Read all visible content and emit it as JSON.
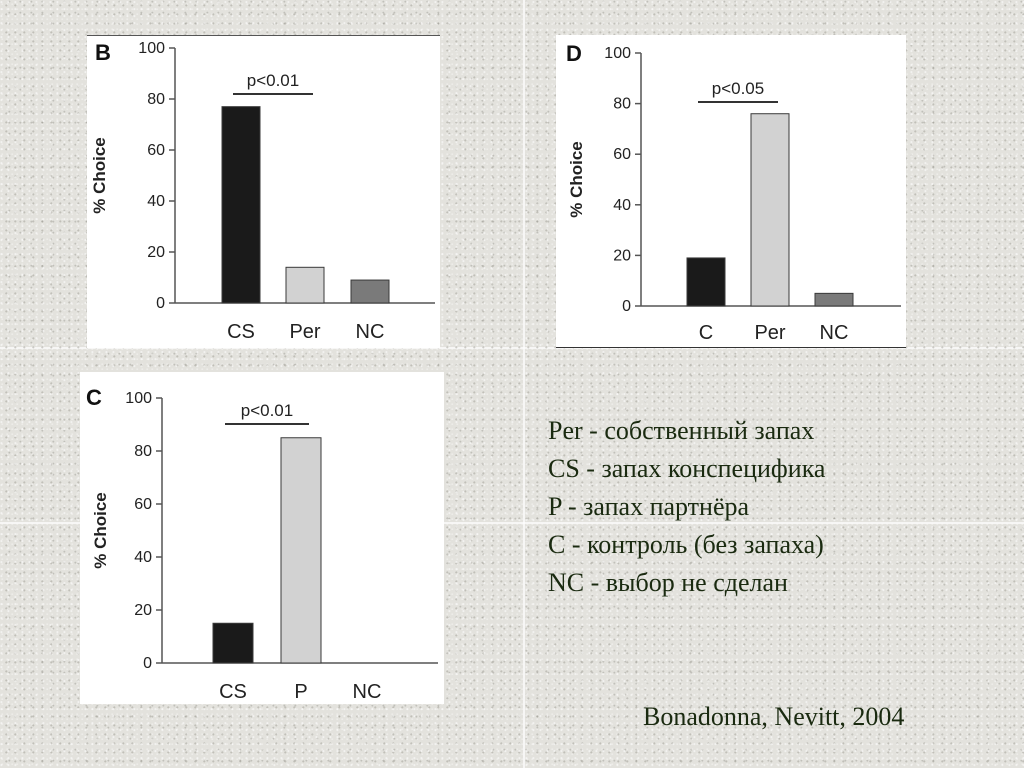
{
  "chart_data": [
    {
      "type": "bar",
      "panel": "B",
      "categories": [
        "CS",
        "Per",
        "NC"
      ],
      "values": [
        77,
        14,
        9
      ],
      "colors": [
        "#1a1a1a",
        "#d2d2d2",
        "#7a7a7a"
      ],
      "ylabel": "% Choice",
      "ylim": [
        0,
        100
      ],
      "yticks": [
        0,
        20,
        40,
        60,
        80,
        100
      ],
      "significance": {
        "label": "p<0.01",
        "from": 0,
        "to": 1
      }
    },
    {
      "type": "bar",
      "panel": "D",
      "categories": [
        "C",
        "Per",
        "NC"
      ],
      "values": [
        19,
        76,
        5
      ],
      "colors": [
        "#1a1a1a",
        "#d2d2d2",
        "#7a7a7a"
      ],
      "ylabel": "% Choice",
      "ylim": [
        0,
        100
      ],
      "yticks": [
        0,
        20,
        40,
        60,
        80,
        100
      ],
      "significance": {
        "label": "p<0.05",
        "from": 0,
        "to": 1
      }
    },
    {
      "type": "bar",
      "panel": "C",
      "categories": [
        "CS",
        "P",
        "NC"
      ],
      "values": [
        15,
        85,
        0
      ],
      "colors": [
        "#1a1a1a",
        "#d2d2d2",
        "#7a7a7a"
      ],
      "ylabel": "% Choice",
      "ylim": [
        0,
        100
      ],
      "yticks": [
        0,
        20,
        40,
        60,
        80,
        100
      ],
      "significance": {
        "label": "p<0.01",
        "from": 0,
        "to": 1
      }
    }
  ],
  "legend": {
    "items": [
      "Per - собственный запах",
      "CS - запах конспецифика",
      "P - запах партнёра",
      "C - контроль (без запаха)",
      "NC - выбор не сделан"
    ]
  },
  "citation": "Bonadonna, Nevitt, 2004"
}
